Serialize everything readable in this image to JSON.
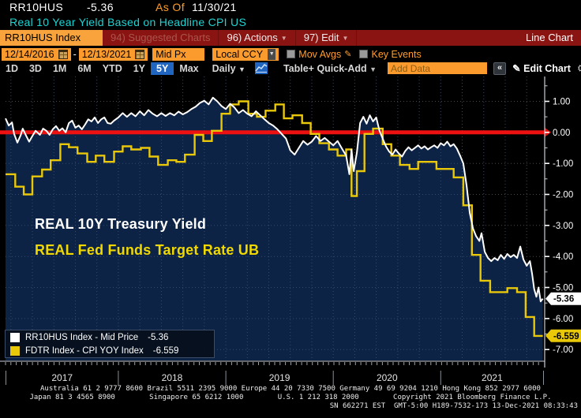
{
  "header": {
    "ticker": "RR10HUS",
    "last_value": "-5.36",
    "as_of_label": "As Of",
    "as_of_date": "11/30/21",
    "description": "Real 10 Year Yield Based on Headline CPI US"
  },
  "menubar": {
    "security_tab": "RR10HUS Index",
    "items": [
      {
        "id": "suggested-charts",
        "label": "94) Suggested Charts",
        "dimmed": true,
        "arrow": false
      },
      {
        "id": "actions",
        "label": "96) Actions",
        "dimmed": false,
        "arrow": true
      },
      {
        "id": "edit",
        "label": "97) Edit",
        "dimmed": false,
        "arrow": true
      }
    ],
    "right_label": "Line Chart"
  },
  "toolbar": {
    "date_from": "12/14/2016",
    "date_to": "12/13/2021",
    "price_field": "Mid Px",
    "currency": "Local CCY",
    "mov_avgs_label": "Mov Avgs",
    "key_events_label": "Key Events"
  },
  "period_bar": {
    "periods": [
      "1D",
      "3D",
      "1M",
      "6M",
      "YTD",
      "1Y",
      "5Y",
      "Max"
    ],
    "selected": "5Y",
    "frequency": "Daily",
    "table_label": "Table",
    "quick_add_label": "+ Quick-Add",
    "add_data_placeholder": "Add Data",
    "collapse_label": "«",
    "edit_chart_label": "Edit Chart"
  },
  "chart": {
    "annotations": [
      {
        "text": "REAL 10Y Treasury Yield",
        "color": "#ffffff"
      },
      {
        "text": "REAL Fed Funds Target Rate UB",
        "color": "#f0d800"
      }
    ],
    "legend": [
      {
        "label": "RR10HUS Index - Mid Price",
        "value": "-5.36",
        "color": "#ffffff"
      },
      {
        "label": "FDTR Index - CPI YOY Index",
        "value": "-6.559",
        "color": "#e9c709"
      }
    ]
  },
  "chart_data": {
    "type": "line",
    "title": "Real 10 Year Yield Based on Headline CPI US",
    "x_range": [
      2016.95,
      2021.96
    ],
    "ylim": [
      -7.3,
      1.8
    ],
    "y_ticks": [
      1.0,
      0.0,
      -1.0,
      -2.0,
      -3.0,
      -4.0,
      -5.0,
      -6.0,
      -7.0
    ],
    "y_tick_labels": [
      "1.00",
      "0.00",
      "-1.00",
      "-2.00",
      "-3.00",
      "-4.00",
      "-5.00",
      "-6.00",
      "-7.00"
    ],
    "x_tick_years": [
      "2017",
      "2018",
      "2019",
      "2020",
      "2021"
    ],
    "grid": true,
    "grid_color": "#36496b",
    "zero_line_color": "#ee1111",
    "legend_position": "bottom-left",
    "badges": [
      {
        "label": "-5.36",
        "value": -5.36,
        "bg": "#ffffff"
      },
      {
        "label": "-6.559",
        "value": -6.559,
        "bg": "#e9c709"
      }
    ],
    "series": [
      {
        "name": "RR10HUS Index - Mid Price",
        "style": "line",
        "color": "#ffffff",
        "fill": "#0d2345",
        "last": -5.36,
        "points": [
          [
            2016.95,
            0.45
          ],
          [
            2016.98,
            0.22
          ],
          [
            2017.01,
            0.32
          ],
          [
            2017.03,
            -0.05
          ],
          [
            2017.06,
            -0.33
          ],
          [
            2017.09,
            -0.1
          ],
          [
            2017.11,
            0.12
          ],
          [
            2017.14,
            -0.1
          ],
          [
            2017.17,
            -0.3
          ],
          [
            2017.2,
            -0.12
          ],
          [
            2017.23,
            0.05
          ],
          [
            2017.27,
            -0.08
          ],
          [
            2017.3,
            0.12
          ],
          [
            2017.33,
            0.05
          ],
          [
            2017.36,
            -0.08
          ],
          [
            2017.39,
            0.1
          ],
          [
            2017.42,
            0.2
          ],
          [
            2017.45,
            0.05
          ],
          [
            2017.48,
            0.13
          ],
          [
            2017.51,
            0.0
          ],
          [
            2017.54,
            0.3
          ],
          [
            2017.57,
            0.38
          ],
          [
            2017.6,
            0.15
          ],
          [
            2017.63,
            0.22
          ],
          [
            2017.66,
            0.1
          ],
          [
            2017.69,
            0.25
          ],
          [
            2017.72,
            0.42
          ],
          [
            2017.75,
            0.35
          ],
          [
            2017.78,
            0.48
          ],
          [
            2017.81,
            0.3
          ],
          [
            2017.84,
            0.42
          ],
          [
            2017.87,
            0.48
          ],
          [
            2017.9,
            0.3
          ],
          [
            2017.93,
            0.28
          ],
          [
            2017.96,
            0.38
          ],
          [
            2018.0,
            0.48
          ],
          [
            2018.04,
            0.62
          ],
          [
            2018.08,
            0.5
          ],
          [
            2018.12,
            0.62
          ],
          [
            2018.16,
            0.52
          ],
          [
            2018.2,
            0.68
          ],
          [
            2018.24,
            0.55
          ],
          [
            2018.28,
            0.72
          ],
          [
            2018.32,
            0.6
          ],
          [
            2018.36,
            0.52
          ],
          [
            2018.4,
            0.62
          ],
          [
            2018.44,
            0.53
          ],
          [
            2018.48,
            0.62
          ],
          [
            2018.52,
            0.55
          ],
          [
            2018.56,
            0.67
          ],
          [
            2018.6,
            0.58
          ],
          [
            2018.64,
            0.65
          ],
          [
            2018.68,
            0.75
          ],
          [
            2018.72,
            0.83
          ],
          [
            2018.76,
            0.95
          ],
          [
            2018.8,
            1.02
          ],
          [
            2018.84,
            0.9
          ],
          [
            2018.88,
            1.12
          ],
          [
            2018.92,
            1.0
          ],
          [
            2018.96,
            0.85
          ],
          [
            2019.0,
            0.75
          ],
          [
            2019.04,
            0.92
          ],
          [
            2019.08,
            0.8
          ],
          [
            2019.12,
            0.62
          ],
          [
            2019.16,
            0.72
          ],
          [
            2019.2,
            0.6
          ],
          [
            2019.24,
            0.52
          ],
          [
            2019.28,
            0.68
          ],
          [
            2019.32,
            0.55
          ],
          [
            2019.36,
            0.42
          ],
          [
            2019.4,
            0.3
          ],
          [
            2019.44,
            0.22
          ],
          [
            2019.48,
            0.1
          ],
          [
            2019.52,
            -0.05
          ],
          [
            2019.56,
            -0.2
          ],
          [
            2019.6,
            -0.58
          ],
          [
            2019.64,
            -0.72
          ],
          [
            2019.68,
            -0.5
          ],
          [
            2019.72,
            -0.28
          ],
          [
            2019.76,
            -0.4
          ],
          [
            2019.8,
            -0.3
          ],
          [
            2019.84,
            -0.12
          ],
          [
            2019.88,
            -0.28
          ],
          [
            2019.92,
            -0.18
          ],
          [
            2019.96,
            -0.3
          ],
          [
            2020.0,
            -0.42
          ],
          [
            2020.04,
            -0.28
          ],
          [
            2020.08,
            -0.52
          ],
          [
            2020.12,
            -0.75
          ],
          [
            2020.15,
            -1.35
          ],
          [
            2020.17,
            -0.55
          ],
          [
            2020.19,
            -1.25
          ],
          [
            2020.22,
            -0.65
          ],
          [
            2020.25,
            0.3
          ],
          [
            2020.28,
            0.5
          ],
          [
            2020.31,
            0.28
          ],
          [
            2020.34,
            0.55
          ],
          [
            2020.37,
            0.35
          ],
          [
            2020.4,
            0.48
          ],
          [
            2020.43,
            0.05
          ],
          [
            2020.46,
            -0.2
          ],
          [
            2020.49,
            -0.45
          ],
          [
            2020.52,
            -0.62
          ],
          [
            2020.55,
            -0.72
          ],
          [
            2020.58,
            -0.55
          ],
          [
            2020.61,
            -0.68
          ],
          [
            2020.64,
            -0.78
          ],
          [
            2020.67,
            -0.6
          ],
          [
            2020.7,
            -0.48
          ],
          [
            2020.73,
            -0.58
          ],
          [
            2020.76,
            -0.5
          ],
          [
            2020.79,
            -0.42
          ],
          [
            2020.82,
            -0.52
          ],
          [
            2020.85,
            -0.45
          ],
          [
            2020.88,
            -0.55
          ],
          [
            2020.91,
            -0.48
          ],
          [
            2020.94,
            -0.42
          ],
          [
            2020.97,
            -0.5
          ],
          [
            2021.0,
            -0.35
          ],
          [
            2021.03,
            -0.42
          ],
          [
            2021.06,
            -0.3
          ],
          [
            2021.09,
            -0.45
          ],
          [
            2021.12,
            -0.38
          ],
          [
            2021.15,
            -0.52
          ],
          [
            2021.18,
            -0.75
          ],
          [
            2021.21,
            -1.0
          ],
          [
            2021.24,
            -1.7
          ],
          [
            2021.27,
            -2.6
          ],
          [
            2021.3,
            -3.1
          ],
          [
            2021.33,
            -3.35
          ],
          [
            2021.36,
            -3.5
          ],
          [
            2021.38,
            -3.25
          ],
          [
            2021.41,
            -3.85
          ],
          [
            2021.44,
            -4.05
          ],
          [
            2021.47,
            -4.15
          ],
          [
            2021.5,
            -4.05
          ],
          [
            2021.53,
            -4.12
          ],
          [
            2021.56,
            -3.95
          ],
          [
            2021.59,
            -4.08
          ],
          [
            2021.62,
            -3.92
          ],
          [
            2021.65,
            -4.02
          ],
          [
            2021.68,
            -3.95
          ],
          [
            2021.71,
            -4.05
          ],
          [
            2021.74,
            -3.68
          ],
          [
            2021.77,
            -4.1
          ],
          [
            2021.8,
            -4.3
          ],
          [
            2021.83,
            -4.15
          ],
          [
            2021.85,
            -4.55
          ],
          [
            2021.87,
            -5.05
          ],
          [
            2021.89,
            -5.3
          ],
          [
            2021.91,
            -5.0
          ],
          [
            2021.93,
            -5.45
          ],
          [
            2021.95,
            -5.36
          ]
        ]
      },
      {
        "name": "FDTR Index - CPI YOY Index",
        "style": "step",
        "color": "#e9c709",
        "last": -6.559,
        "points": [
          [
            2016.95,
            -1.35
          ],
          [
            2017.04,
            -1.75
          ],
          [
            2017.12,
            -2.0
          ],
          [
            2017.2,
            -1.42
          ],
          [
            2017.29,
            -1.2
          ],
          [
            2017.37,
            -0.9
          ],
          [
            2017.46,
            -0.38
          ],
          [
            2017.54,
            -0.48
          ],
          [
            2017.62,
            -0.68
          ],
          [
            2017.71,
            -0.95
          ],
          [
            2017.79,
            -0.75
          ],
          [
            2017.87,
            -0.95
          ],
          [
            2017.96,
            -0.62
          ],
          [
            2018.04,
            -0.45
          ],
          [
            2018.12,
            -0.55
          ],
          [
            2018.21,
            -0.5
          ],
          [
            2018.29,
            -0.78
          ],
          [
            2018.37,
            -1.05
          ],
          [
            2018.46,
            -0.9
          ],
          [
            2018.54,
            -0.95
          ],
          [
            2018.62,
            -0.72
          ],
          [
            2018.71,
            -0.08
          ],
          [
            2018.79,
            -0.28
          ],
          [
            2018.87,
            0.05
          ],
          [
            2018.96,
            0.6
          ],
          [
            2019.04,
            0.9
          ],
          [
            2019.12,
            1.0
          ],
          [
            2019.21,
            0.6
          ],
          [
            2019.29,
            0.5
          ],
          [
            2019.37,
            0.7
          ],
          [
            2019.46,
            0.9
          ],
          [
            2019.54,
            0.45
          ],
          [
            2019.62,
            0.55
          ],
          [
            2019.71,
            0.3
          ],
          [
            2019.79,
            -0.05
          ],
          [
            2019.87,
            -0.35
          ],
          [
            2019.96,
            -0.55
          ],
          [
            2020.04,
            -0.75
          ],
          [
            2020.12,
            -0.55
          ],
          [
            2020.17,
            -2.05
          ],
          [
            2020.22,
            -1.25
          ],
          [
            2020.29,
            -0.05
          ],
          [
            2020.37,
            0.12
          ],
          [
            2020.46,
            -0.38
          ],
          [
            2020.54,
            -0.75
          ],
          [
            2020.62,
            -1.05
          ],
          [
            2020.71,
            -1.18
          ],
          [
            2020.79,
            -0.95
          ],
          [
            2020.87,
            -0.95
          ],
          [
            2020.96,
            -1.18
          ],
          [
            2021.04,
            -1.18
          ],
          [
            2021.12,
            -1.45
          ],
          [
            2021.21,
            -2.35
          ],
          [
            2021.29,
            -3.95
          ],
          [
            2021.37,
            -4.78
          ],
          [
            2021.46,
            -5.15
          ],
          [
            2021.54,
            -5.15
          ],
          [
            2021.62,
            -5.02
          ],
          [
            2021.71,
            -5.15
          ],
          [
            2021.79,
            -5.95
          ],
          [
            2021.87,
            -6.56
          ],
          [
            2021.95,
            -6.56
          ]
        ]
      }
    ]
  },
  "footer": {
    "line1": "Australia 61 2 9777 8600 Brazil 5511 2395 9000 Europe 44 20 7330 7500 Germany 49 69 9204 1210 Hong Kong 852 2977 6000",
    "line2": "Japan 81 3 4565 8900        Singapore 65 6212 1000        U.S. 1 212 318 2000        Copyright 2021 Bloomberg Finance L.P.",
    "line3": "SN 662271 EST  GMT-5:00 H189-7532-173 13-Dec-2021 08:33:43"
  }
}
